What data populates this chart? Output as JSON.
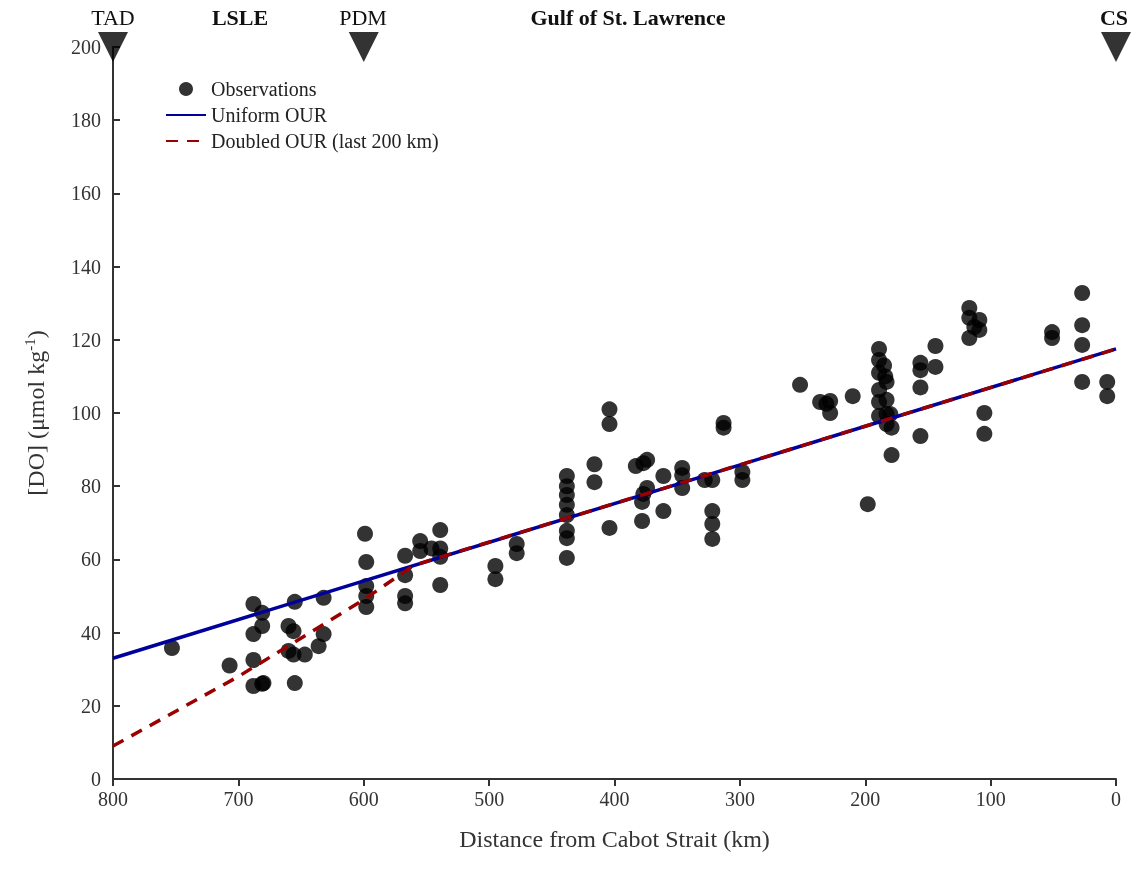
{
  "chart_data": {
    "type": "scatter",
    "xlabel": "Distance from Cabot Strait (km)",
    "ylabel": "[DO] (μmol kg$^{-1}$)",
    "xlim": [
      800,
      0
    ],
    "xticks": [
      800,
      700,
      600,
      500,
      400,
      300,
      200,
      100,
      0
    ],
    "ylim": [
      0,
      200
    ],
    "yticks": [
      0,
      20,
      40,
      60,
      80,
      100,
      120,
      140,
      160,
      180,
      200
    ],
    "grid": false,
    "legend": "top left",
    "annotations": [
      "TAD",
      "LSLE",
      "PDM",
      "Gulf of St. Lawrence",
      "CS"
    ],
    "series": [
      {
        "name": "Observations",
        "marker": "circle",
        "color": "#000000",
        "x": [
          753,
          707,
          688,
          688,
          688,
          688,
          681,
          681,
          681,
          680,
          660,
          660,
          656,
          656,
          655,
          655,
          647,
          636,
          632,
          632,
          599,
          598,
          598,
          598,
          598,
          567,
          567,
          567,
          567,
          555,
          555,
          546,
          539,
          539,
          539,
          539,
          495,
          495,
          478,
          478,
          438,
          438,
          438,
          438,
          438,
          438,
          438,
          438,
          416,
          416,
          404,
          404,
          404,
          383,
          377,
          374,
          377,
          378,
          378,
          374,
          361,
          361,
          346,
          346,
          346,
          328,
          322,
          322,
          322,
          322,
          313,
          313,
          298,
          298,
          252,
          236,
          231,
          228,
          228,
          210,
          198,
          189,
          189,
          189,
          189,
          189,
          189,
          185,
          184,
          183,
          183,
          183,
          183,
          180,
          179,
          179,
          156,
          156,
          156,
          156,
          144,
          144,
          117,
          117,
          117,
          113,
          109,
          109,
          105,
          105,
          51,
          51,
          27,
          27,
          27,
          27,
          7,
          7
        ],
        "values": [
          35.8,
          31,
          25.4,
          32.5,
          39.6,
          47.8,
          26,
          45.4,
          41.8,
          26.2,
          41.8,
          35,
          34,
          40.4,
          48.4,
          26.2,
          34,
          36.3,
          39.6,
          49.5,
          67,
          59.3,
          52.7,
          50,
          47,
          61,
          55.7,
          50,
          48,
          62.3,
          65,
          63,
          63,
          60.7,
          68,
          53,
          58.2,
          54.6,
          64.2,
          61.7,
          67.8,
          74.9,
          72.1,
          77.6,
          80,
          82.8,
          65.8,
          60.4,
          86,
          81.1,
          101,
          97,
          68.6,
          85.5,
          86.3,
          87.2,
          77.9,
          75.7,
          70.5,
          79.5,
          82.8,
          73.2,
          85,
          83,
          79.5,
          81.7,
          73.2,
          69.7,
          65.6,
          81.7,
          97.3,
          96,
          83.9,
          81.7,
          107.7,
          103,
          102.5,
          100,
          103.3,
          104.6,
          75.1,
          117.5,
          114.5,
          111,
          106.3,
          103,
          99.2,
          113,
          110,
          108.5,
          103.6,
          99.7,
          97,
          99.7,
          88.5,
          96,
          113.7,
          111.7,
          107,
          93.7,
          118.3,
          112.6,
          128.7,
          126,
          120.5,
          123.5,
          125.4,
          122.7,
          100,
          94.3,
          122.1,
          120.5,
          132.8,
          124,
          118.6,
          108.5,
          108.5,
          104.6
        ]
      },
      {
        "name": "Uniform OUR",
        "type": "line",
        "line_style": "solid",
        "color": "#00009b",
        "x": [
          800,
          0
        ],
        "values": [
          33,
          117.5
        ]
      },
      {
        "name": "Doubled OUR (last 200 km)",
        "type": "line",
        "line_style": "dashed",
        "color": "#9b0000",
        "x": [
          800,
          700,
          600,
          560,
          0
        ],
        "values": [
          9,
          28,
          49,
          58.4,
          117.5
        ]
      },
      {
        "type": "scatter",
        "marker": "triangle",
        "color": "#000000",
        "x": [
          800,
          600,
          0
        ],
        "values": [
          200,
          200,
          200
        ]
      }
    ]
  }
}
